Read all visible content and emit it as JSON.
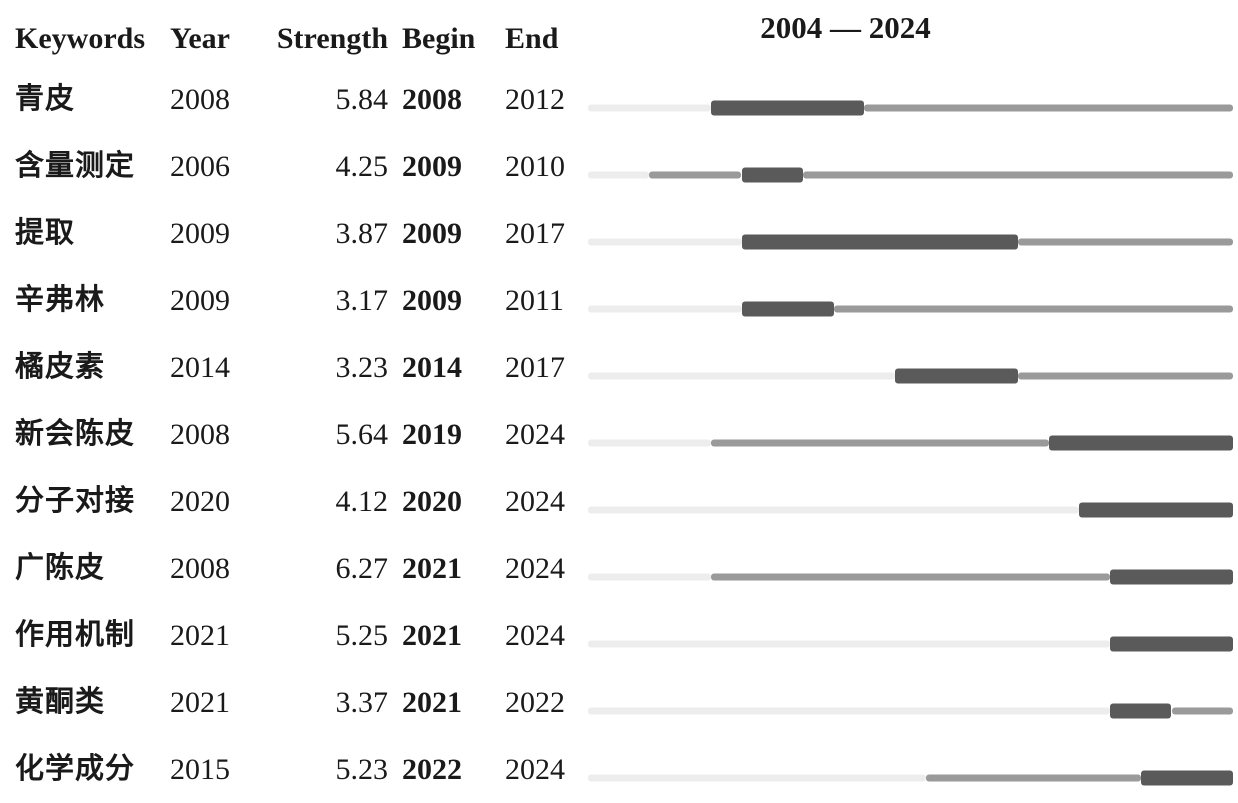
{
  "header": {
    "keywords": "Keywords",
    "year": "Year",
    "strength": "Strength",
    "begin": "Begin",
    "end": "End",
    "period": "2004 — 2024"
  },
  "colors": {
    "pre_appearance": "#ededed",
    "active_line": "#9a9a9a",
    "burst_bar": "#5a5a5a"
  },
  "chart_data": {
    "type": "bar",
    "subtype": "citation-burst-timeline",
    "title": "2004 — 2024",
    "columns": [
      "Keywords",
      "Year",
      "Strength",
      "Begin",
      "End"
    ],
    "x_range": [
      2004,
      2024
    ],
    "legend": {
      "pre_appearance_color": "#ededed",
      "active_period_color": "#9a9a9a",
      "burst_period_color": "#5a5a5a"
    },
    "rows": [
      {
        "keyword": "青皮",
        "year": 2008,
        "strength": 5.84,
        "begin": 2008,
        "end": 2012
      },
      {
        "keyword": "含量测定",
        "year": 2006,
        "strength": 4.25,
        "begin": 2009,
        "end": 2010
      },
      {
        "keyword": "提取",
        "year": 2009,
        "strength": 3.87,
        "begin": 2009,
        "end": 2017
      },
      {
        "keyword": "辛弗林",
        "year": 2009,
        "strength": 3.17,
        "begin": 2009,
        "end": 2011
      },
      {
        "keyword": "橘皮素",
        "year": 2014,
        "strength": 3.23,
        "begin": 2014,
        "end": 2017
      },
      {
        "keyword": "新会陈皮",
        "year": 2008,
        "strength": 5.64,
        "begin": 2019,
        "end": 2024
      },
      {
        "keyword": "分子对接",
        "year": 2020,
        "strength": 4.12,
        "begin": 2020,
        "end": 2024
      },
      {
        "keyword": "广陈皮",
        "year": 2008,
        "strength": 6.27,
        "begin": 2021,
        "end": 2024
      },
      {
        "keyword": "作用机制",
        "year": 2021,
        "strength": 5.25,
        "begin": 2021,
        "end": 2024
      },
      {
        "keyword": "黄酮类",
        "year": 2021,
        "strength": 3.37,
        "begin": 2021,
        "end": 2022
      },
      {
        "keyword": "化学成分",
        "year": 2015,
        "strength": 5.23,
        "begin": 2022,
        "end": 2024
      }
    ]
  }
}
